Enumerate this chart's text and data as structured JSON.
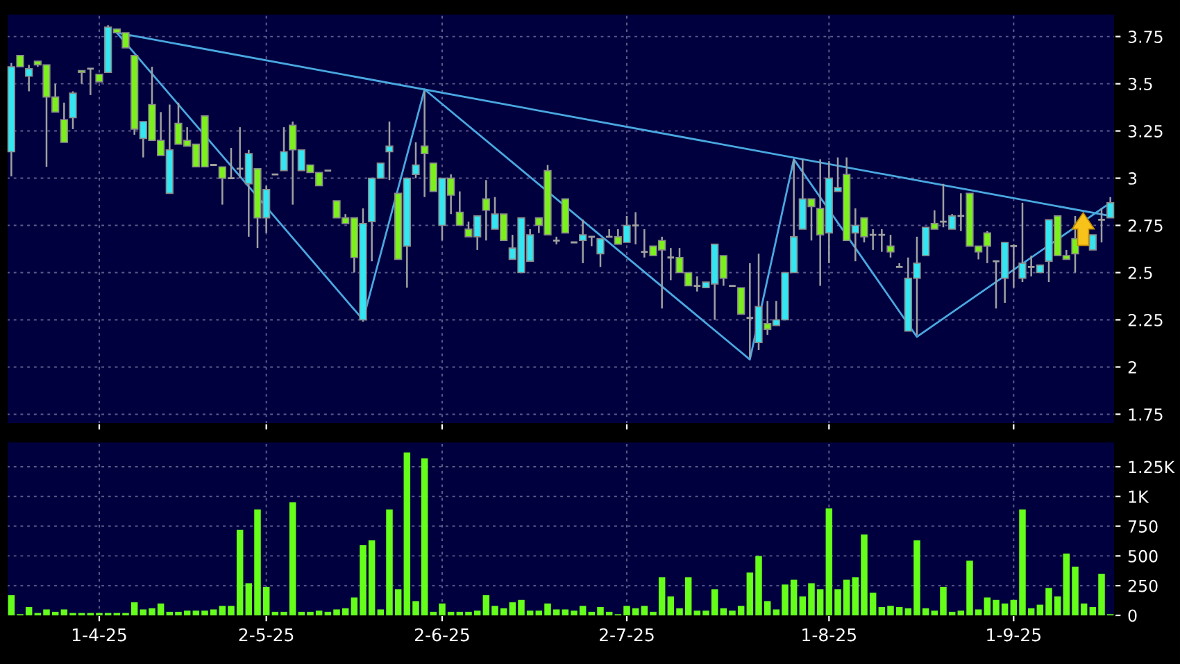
{
  "chart_data": [
    {
      "type": "candlestick",
      "categories": [
        null,
        null,
        null,
        null,
        null,
        null,
        null,
        null,
        null,
        null,
        null,
        null,
        null,
        null,
        null,
        null,
        null,
        null,
        null,
        null,
        null,
        null,
        null,
        null,
        null,
        null,
        null,
        null,
        null,
        null,
        null,
        null,
        null,
        null,
        null,
        null,
        null,
        null,
        null,
        null,
        null,
        null,
        null,
        null,
        null,
        null,
        null,
        null,
        null,
        null,
        null,
        null,
        null,
        null,
        null,
        null,
        null,
        null,
        null,
        null,
        null,
        null,
        null,
        null,
        null,
        null,
        null,
        null,
        null,
        null,
        null,
        null,
        null,
        null,
        null,
        null,
        null,
        null,
        null,
        null,
        null,
        null,
        null,
        null,
        null,
        null,
        null,
        null,
        null,
        null,
        null,
        null,
        null,
        null,
        null,
        null,
        null,
        null,
        null,
        null,
        null,
        null,
        null,
        null,
        null,
        null,
        null,
        null,
        null,
        null,
        null,
        null,
        null,
        null,
        null,
        null,
        null,
        null,
        null,
        null,
        null,
        null,
        null,
        null,
        null,
        null
      ],
      "ohlc": [
        [
          3.14,
          3.61,
          3.01,
          3.59
        ],
        [
          3.65,
          3.65,
          3.59,
          3.59
        ],
        [
          3.54,
          3.6,
          3.46,
          3.58
        ],
        [
          3.62,
          3.62,
          3.59,
          3.6
        ],
        [
          3.6,
          3.6,
          3.06,
          3.43
        ],
        [
          3.43,
          3.5,
          3.35,
          3.35
        ],
        [
          3.31,
          3.4,
          3.19,
          3.19
        ],
        [
          3.32,
          3.46,
          3.26,
          3.45
        ],
        [
          3.57,
          3.57,
          3.5,
          3.56
        ],
        [
          3.58,
          3.58,
          3.44,
          3.58
        ],
        [
          3.55,
          3.55,
          3.51,
          3.51
        ],
        [
          3.56,
          3.81,
          3.56,
          3.8
        ],
        [
          3.79,
          3.79,
          3.77,
          3.77
        ],
        [
          3.77,
          3.77,
          3.69,
          3.69
        ],
        [
          3.65,
          3.65,
          3.23,
          3.26
        ],
        [
          3.21,
          3.3,
          3.11,
          3.3
        ],
        [
          3.39,
          3.59,
          3.2,
          3.2
        ],
        [
          3.2,
          3.35,
          3.12,
          3.12
        ],
        [
          2.92,
          3.39,
          2.92,
          3.15
        ],
        [
          3.29,
          3.4,
          3.18,
          3.18
        ],
        [
          3.2,
          3.27,
          3.17,
          3.17
        ],
        [
          3.18,
          3.18,
          3.06,
          3.06
        ],
        [
          3.33,
          3.33,
          3.06,
          3.06
        ],
        [
          3.07,
          3.07,
          3.07,
          3.07
        ],
        [
          3.06,
          3.06,
          2.86,
          3.0
        ],
        [
          3.0,
          3.16,
          3.0,
          3.0
        ],
        [
          3.05,
          3.27,
          3.0,
          3.05
        ],
        [
          2.97,
          3.15,
          2.69,
          3.13
        ],
        [
          3.05,
          3.05,
          2.63,
          2.79
        ],
        [
          2.79,
          2.96,
          2.71,
          2.94
        ],
        [
          3.02,
          3.02,
          3.02,
          3.02
        ],
        [
          3.04,
          3.27,
          3.04,
          3.14
        ],
        [
          3.28,
          3.3,
          2.86,
          3.15
        ],
        [
          3.04,
          3.15,
          3.04,
          3.15
        ],
        [
          3.07,
          3.07,
          3.03,
          3.03
        ],
        [
          3.03,
          3.03,
          2.96,
          2.96
        ],
        [
          3.04,
          3.04,
          3.04,
          3.04
        ],
        [
          2.88,
          2.88,
          2.79,
          2.79
        ],
        [
          2.79,
          2.81,
          2.76,
          2.76
        ],
        [
          2.79,
          2.79,
          2.5,
          2.58
        ],
        [
          2.25,
          2.84,
          2.24,
          2.76
        ],
        [
          2.77,
          3.0,
          2.56,
          3.0
        ],
        [
          3.0,
          3.08,
          3.0,
          3.08
        ],
        [
          3.14,
          3.3,
          2.99,
          3.17
        ],
        [
          2.92,
          2.92,
          2.57,
          2.57
        ],
        [
          2.64,
          3.0,
          2.42,
          3.0
        ],
        [
          3.02,
          3.19,
          3.0,
          3.07
        ],
        [
          3.17,
          3.46,
          2.9,
          3.13
        ],
        [
          3.08,
          3.08,
          2.93,
          2.93
        ],
        [
          2.75,
          3.0,
          2.67,
          3.0
        ],
        [
          3.0,
          3.02,
          2.81,
          2.91
        ],
        [
          2.82,
          2.93,
          2.75,
          2.75
        ],
        [
          2.73,
          2.77,
          2.69,
          2.69
        ],
        [
          2.69,
          2.8,
          2.62,
          2.8
        ],
        [
          2.89,
          2.99,
          2.67,
          2.83
        ],
        [
          2.73,
          2.9,
          2.73,
          2.81
        ],
        [
          2.81,
          2.81,
          2.67,
          2.67
        ],
        [
          2.57,
          2.7,
          2.57,
          2.63
        ],
        [
          2.5,
          2.79,
          2.5,
          2.79
        ],
        [
          2.56,
          2.73,
          2.56,
          2.7
        ],
        [
          2.79,
          2.79,
          2.71,
          2.75
        ],
        [
          3.04,
          3.07,
          2.7,
          2.7
        ],
        [
          2.67,
          2.69,
          2.65,
          2.67
        ],
        [
          2.89,
          2.89,
          2.71,
          2.71
        ],
        [
          2.66,
          2.66,
          2.66,
          2.66
        ],
        [
          2.67,
          2.78,
          2.55,
          2.7
        ],
        [
          2.69,
          2.69,
          2.64,
          2.69
        ],
        [
          2.6,
          2.68,
          2.53,
          2.68
        ],
        [
          2.69,
          2.73,
          2.69,
          2.69
        ],
        [
          2.69,
          2.73,
          2.65,
          2.65
        ],
        [
          2.66,
          2.8,
          2.66,
          2.75
        ],
        [
          2.75,
          2.82,
          2.65,
          2.75
        ],
        [
          2.61,
          2.73,
          2.58,
          2.61
        ],
        [
          2.64,
          2.64,
          2.59,
          2.59
        ],
        [
          2.67,
          2.69,
          2.31,
          2.62
        ],
        [
          2.58,
          2.63,
          2.46,
          2.58
        ],
        [
          2.58,
          2.63,
          2.5,
          2.5
        ],
        [
          2.5,
          2.5,
          2.43,
          2.43
        ],
        [
          2.43,
          2.48,
          2.4,
          2.43
        ],
        [
          2.42,
          2.45,
          2.42,
          2.45
        ],
        [
          2.44,
          2.65,
          2.25,
          2.65
        ],
        [
          2.59,
          2.59,
          2.43,
          2.47
        ],
        [
          2.43,
          2.43,
          2.43,
          2.43
        ],
        [
          2.42,
          2.42,
          2.28,
          2.28
        ],
        [
          2.26,
          2.55,
          2.05,
          2.26
        ],
        [
          2.13,
          2.6,
          2.09,
          2.32
        ],
        [
          2.23,
          2.35,
          2.17,
          2.2
        ],
        [
          2.22,
          2.35,
          2.22,
          2.25
        ],
        [
          2.25,
          2.5,
          2.25,
          2.5
        ],
        [
          2.5,
          3.1,
          2.5,
          2.69
        ],
        [
          2.73,
          3.1,
          2.73,
          2.89
        ],
        [
          2.89,
          2.89,
          2.67,
          2.85
        ],
        [
          2.84,
          3.1,
          2.43,
          2.7
        ],
        [
          2.71,
          3.09,
          2.55,
          3.0
        ],
        [
          2.93,
          3.11,
          2.93,
          2.95
        ],
        [
          3.02,
          3.11,
          2.67,
          2.67
        ],
        [
          2.71,
          2.84,
          2.56,
          2.75
        ],
        [
          2.79,
          2.79,
          2.66,
          2.69
        ],
        [
          2.7,
          2.73,
          2.62,
          2.7
        ],
        [
          2.7,
          2.73,
          2.61,
          2.7
        ],
        [
          2.64,
          2.7,
          2.58,
          2.61
        ],
        [
          2.53,
          2.55,
          2.53,
          2.53
        ],
        [
          2.19,
          2.58,
          2.19,
          2.47
        ],
        [
          2.47,
          2.69,
          2.17,
          2.55
        ],
        [
          2.59,
          2.74,
          2.59,
          2.74
        ],
        [
          2.76,
          2.83,
          2.73,
          2.73
        ],
        [
          2.77,
          2.97,
          2.74,
          2.77
        ],
        [
          2.73,
          2.81,
          2.73,
          2.8
        ],
        [
          2.8,
          2.92,
          2.72,
          2.8
        ],
        [
          2.92,
          2.92,
          2.64,
          2.64
        ],
        [
          2.64,
          2.64,
          2.57,
          2.61
        ],
        [
          2.71,
          2.72,
          2.55,
          2.64
        ],
        [
          2.56,
          2.56,
          2.31,
          2.56
        ],
        [
          2.47,
          2.66,
          2.34,
          2.66
        ],
        [
          2.64,
          2.65,
          2.42,
          2.64
        ],
        [
          2.47,
          2.87,
          2.45,
          2.55
        ],
        [
          2.53,
          2.59,
          2.48,
          2.53
        ],
        [
          2.5,
          2.54,
          2.5,
          2.54
        ],
        [
          2.56,
          2.78,
          2.45,
          2.78
        ],
        [
          2.8,
          2.8,
          2.59,
          2.59
        ],
        [
          2.59,
          2.62,
          2.57,
          2.57
        ],
        [
          2.68,
          2.8,
          2.5,
          2.6
        ],
        null,
        [
          2.62,
          2.7,
          2.62,
          2.7
        ],
        [
          2.78,
          2.84,
          2.66,
          2.78
        ],
        [
          2.79,
          2.9,
          2.79,
          2.87
        ]
      ],
      "colors": [
        "#33e6f2",
        "#7cf01c",
        "#33e6f2",
        "#7cf01c",
        "#7cf01c",
        "#7cf01c",
        "#7cf01c",
        "#33e6f2",
        "#7cf01c",
        "#a0a0a0",
        "#7cf01c",
        "#33e6f2",
        "#7cf01c",
        "#7cf01c",
        "#7cf01c",
        "#33e6f2",
        "#7cf01c",
        "#7cf01c",
        "#33e6f2",
        "#7cf01c",
        "#7cf01c",
        "#7cf01c",
        "#7cf01c",
        "#a0a0a0",
        "#7cf01c",
        "#a0a0a0",
        "#a0a0a0",
        "#33e6f2",
        "#7cf01c",
        "#33e6f2",
        "#a0a0a0",
        "#33e6f2",
        "#7cf01c",
        "#33e6f2",
        "#7cf01c",
        "#7cf01c",
        "#a0a0a0",
        "#7cf01c",
        "#7cf01c",
        "#7cf01c",
        "#33e6f2",
        "#33e6f2",
        "#33e6f2",
        "#33e6f2",
        "#7cf01c",
        "#33e6f2",
        "#33e6f2",
        "#7cf01c",
        "#7cf01c",
        "#33e6f2",
        "#7cf01c",
        "#7cf01c",
        "#7cf01c",
        "#33e6f2",
        "#7cf01c",
        "#33e6f2",
        "#7cf01c",
        "#33e6f2",
        "#33e6f2",
        "#33e6f2",
        "#7cf01c",
        "#7cf01c",
        "#a0a0a0",
        "#7cf01c",
        "#a0a0a0",
        "#33e6f2",
        "#a0a0a0",
        "#33e6f2",
        "#a0a0a0",
        "#7cf01c",
        "#33e6f2",
        "#a0a0a0",
        "#a0a0a0",
        "#7cf01c",
        "#7cf01c",
        "#a0a0a0",
        "#7cf01c",
        "#7cf01c",
        "#a0a0a0",
        "#33e6f2",
        "#33e6f2",
        "#7cf01c",
        "#a0a0a0",
        "#7cf01c",
        "#a0a0a0",
        "#33e6f2",
        "#7cf01c",
        "#33e6f2",
        "#33e6f2",
        "#33e6f2",
        "#33e6f2",
        "#7cf01c",
        "#7cf01c",
        "#33e6f2",
        "#33e6f2",
        "#7cf01c",
        "#33e6f2",
        "#7cf01c",
        "#a0a0a0",
        "#a0a0a0",
        "#7cf01c",
        "#a0a0a0",
        "#33e6f2",
        "#33e6f2",
        "#33e6f2",
        "#7cf01c",
        "#a0a0a0",
        "#33e6f2",
        "#a0a0a0",
        "#7cf01c",
        "#7cf01c",
        "#7cf01c",
        "#a0a0a0",
        "#33e6f2",
        "#a0a0a0",
        "#33e6f2",
        "#a0a0a0",
        "#33e6f2",
        "#33e6f2",
        "#7cf01c",
        "#7cf01c",
        "#7cf01c",
        null,
        "#33e6f2",
        "#a0a0a0",
        "#33e6f2"
      ],
      "series": [
        {
          "type": "line",
          "color": "#4aa8e0",
          "values": [
            null,
            null,
            null,
            null,
            null,
            null,
            null,
            null,
            null,
            null,
            null,
            null,
            3.77,
            null,
            null,
            null,
            null,
            null,
            null,
            null,
            null,
            null,
            null,
            null,
            null,
            null,
            null,
            null,
            null,
            null,
            null,
            null,
            null,
            null,
            null,
            null,
            null,
            null,
            null,
            null,
            null,
            null,
            null,
            null,
            null,
            null,
            null,
            null,
            null,
            null,
            null,
            null,
            null,
            null,
            null,
            null,
            null,
            null,
            null,
            null,
            null,
            null,
            null,
            null,
            null,
            null,
            null,
            null,
            null,
            null,
            null,
            null,
            null,
            null,
            null,
            null,
            null,
            null,
            null,
            null,
            null,
            null,
            null,
            null,
            null,
            null,
            null,
            null,
            null,
            null,
            null,
            null,
            null,
            null,
            null,
            null,
            null,
            null,
            null,
            null,
            null,
            null,
            null,
            null,
            null,
            null,
            null,
            null,
            null,
            null,
            null,
            null,
            null,
            null,
            null,
            null,
            null,
            null,
            null,
            null,
            null,
            null,
            null,
            null,
            null,
            2.8
          ]
        },
        {
          "type": "line",
          "color": "#4aa8e0",
          "values": [
            null,
            null,
            null,
            null,
            null,
            null,
            null,
            null,
            null,
            null,
            null,
            null,
            3.77,
            null,
            null,
            null,
            null,
            null,
            null,
            null,
            null,
            null,
            null,
            null,
            null,
            null,
            null,
            null,
            null,
            null,
            null,
            null,
            null,
            null,
            null,
            null,
            null,
            null,
            null,
            null,
            2.25,
            null,
            null,
            null,
            null,
            null,
            null,
            3.47,
            null,
            null,
            null,
            null,
            null,
            null,
            null,
            null,
            null,
            null,
            null,
            null,
            null,
            null,
            null,
            null,
            null,
            null,
            null,
            null,
            null,
            null,
            null,
            null,
            null,
            null,
            null,
            null,
            null,
            null,
            null,
            null,
            null,
            null,
            null,
            null,
            2.04,
            null,
            null,
            null,
            null,
            3.1,
            null,
            null,
            null,
            null,
            null,
            null,
            null,
            null,
            null,
            null,
            null,
            null,
            null,
            2.16,
            null,
            null,
            null,
            null,
            null,
            null,
            null,
            null,
            null,
            null,
            null,
            null,
            null,
            null,
            null,
            null,
            null,
            null,
            null,
            null,
            null,
            2.87
          ]
        }
      ],
      "ylim": [
        1.7,
        3.87
      ],
      "yticks": [
        1.75,
        2,
        2.25,
        2.5,
        2.75,
        3,
        3.25,
        3.5,
        3.75
      ],
      "grid": true,
      "tick_labels": "y"
    },
    {
      "type": "bar",
      "categories": [
        null,
        null,
        null,
        null,
        null,
        null,
        null,
        null,
        null,
        null,
        "1-4-25",
        null,
        null,
        null,
        null,
        null,
        null,
        null,
        null,
        null,
        null,
        null,
        null,
        null,
        null,
        null,
        null,
        null,
        null,
        "2-5-25",
        null,
        null,
        null,
        null,
        null,
        null,
        null,
        null,
        null,
        null,
        null,
        null,
        null,
        null,
        null,
        null,
        null,
        null,
        null,
        "2-6-25",
        null,
        null,
        null,
        null,
        null,
        null,
        null,
        null,
        null,
        null,
        null,
        null,
        null,
        null,
        null,
        null,
        null,
        null,
        null,
        null,
        "2-7-25",
        null,
        null,
        null,
        null,
        null,
        null,
        null,
        null,
        null,
        null,
        null,
        null,
        null,
        null,
        null,
        null,
        null,
        null,
        null,
        null,
        null,
        null,
        "1-8-25",
        null,
        null,
        null,
        null,
        null,
        null,
        null,
        null,
        null,
        null,
        null,
        null,
        null,
        null,
        null,
        null,
        null,
        null,
        null,
        null,
        "1-9-25",
        null,
        null,
        null,
        null,
        null,
        null,
        null,
        null,
        null,
        null,
        null
      ],
      "values": [
        170,
        10,
        70,
        20,
        50,
        30,
        50,
        20,
        20,
        20,
        20,
        20,
        20,
        20,
        110,
        50,
        60,
        100,
        30,
        30,
        40,
        40,
        40,
        50,
        80,
        80,
        720,
        270,
        890,
        240,
        30,
        30,
        950,
        30,
        30,
        40,
        30,
        50,
        60,
        150,
        590,
        630,
        50,
        890,
        220,
        1370,
        120,
        1320,
        30,
        100,
        30,
        30,
        30,
        40,
        170,
        80,
        60,
        110,
        130,
        40,
        40,
        100,
        50,
        50,
        40,
        80,
        30,
        70,
        30,
        10,
        80,
        60,
        80,
        30,
        320,
        160,
        60,
        320,
        40,
        40,
        220,
        60,
        40,
        80,
        360,
        500,
        120,
        50,
        260,
        300,
        160,
        270,
        220,
        900,
        220,
        300,
        320,
        680,
        190,
        70,
        80,
        70,
        60,
        630,
        60,
        40,
        240,
        30,
        40,
        460,
        50,
        150,
        130,
        100,
        130,
        890,
        60,
        90,
        230,
        160,
        520,
        410,
        100,
        70,
        350,
        10
      ],
      "color": "#66ff1a",
      "ylim": [
        0,
        1460
      ],
      "yticks": [
        0,
        250,
        500,
        750,
        {
          "value": 1000,
          "label": "1K"
        },
        {
          "value": 1250,
          "label": "1.25K"
        }
      ],
      "grid": true
    }
  ]
}
